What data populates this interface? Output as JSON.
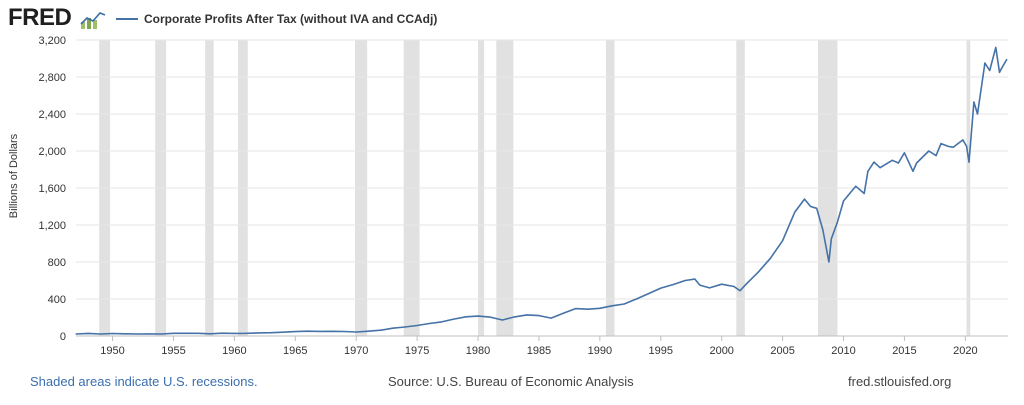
{
  "header": {
    "logo": "FRED",
    "logo_icon": "fred-graph-icon",
    "legend_label": "Corporate Profits After Tax (without IVA and CCAdj)",
    "series_color": "#4572a7"
  },
  "footer": {
    "recession_note": "Shaded areas indicate U.S. recessions.",
    "source": "Source: U.S. Bureau of Economic Analysis",
    "site": "fred.stlouisfed.org"
  },
  "chart_data": {
    "type": "line",
    "title": "",
    "xlabel": "",
    "ylabel": "Billions of Dollars",
    "xlim": [
      1947,
      2023.5
    ],
    "ylim": [
      0,
      3200
    ],
    "x_ticks": [
      1950,
      1955,
      1960,
      1965,
      1970,
      1975,
      1980,
      1985,
      1990,
      1995,
      2000,
      2005,
      2010,
      2015,
      2020
    ],
    "y_ticks": [
      0,
      400,
      800,
      1200,
      1600,
      2000,
      2400,
      2800,
      3200
    ],
    "y_tick_labels": [
      "0",
      "400",
      "800",
      "1,200",
      "1,600",
      "2,000",
      "2,400",
      "2,800",
      "3,200"
    ],
    "grid": true,
    "recession_color": "#e1e1e1",
    "recessions": [
      [
        1948.9,
        1949.8
      ],
      [
        1953.5,
        1954.4
      ],
      [
        1957.6,
        1958.3
      ],
      [
        1960.3,
        1961.1
      ],
      [
        1969.9,
        1970.9
      ],
      [
        1973.9,
        1975.2
      ],
      [
        1980.0,
        1980.5
      ],
      [
        1981.5,
        1982.9
      ],
      [
        1990.5,
        1991.2
      ],
      [
        2001.2,
        2001.9
      ],
      [
        2007.9,
        2009.5
      ],
      [
        2020.1,
        2020.4
      ]
    ],
    "series": [
      {
        "name": "Corporate Profits After Tax (without IVA and CCAdj)",
        "color": "#4572a7",
        "x": [
          1947,
          1948,
          1949,
          1950,
          1951,
          1952,
          1953,
          1954,
          1955,
          1956,
          1957,
          1958,
          1959,
          1960,
          1961,
          1962,
          1963,
          1964,
          1965,
          1966,
          1967,
          1968,
          1969,
          1970,
          1971,
          1972,
          1973,
          1974,
          1975,
          1976,
          1977,
          1978,
          1979,
          1980,
          1981,
          1982,
          1983,
          1984,
          1985,
          1986,
          1987,
          1988,
          1989,
          1990,
          1991,
          1992,
          1993,
          1994,
          1995,
          1996,
          1997,
          1997.8,
          1998.2,
          1999,
          2000,
          2001,
          2001.5,
          2002,
          2003,
          2004,
          2005,
          2006,
          2006.8,
          2007.3,
          2007.8,
          2008.3,
          2008.8,
          2009.0,
          2009.5,
          2010,
          2011,
          2011.7,
          2012,
          2012.5,
          2013,
          2014,
          2014.5,
          2015,
          2015.7,
          2016,
          2017,
          2017.6,
          2018,
          2018.6,
          2019,
          2019.8,
          2020.1,
          2020.3,
          2020.7,
          2021,
          2021.6,
          2022,
          2022.5,
          2022.8,
          2023,
          2023.4
        ],
        "values": [
          22,
          28,
          22,
          27,
          24,
          22,
          23,
          22,
          29,
          29,
          29,
          24,
          30,
          28,
          29,
          33,
          36,
          41,
          48,
          52,
          50,
          51,
          49,
          43,
          52,
          63,
          84,
          97,
          113,
          135,
          152,
          183,
          208,
          215,
          204,
          173,
          207,
          228,
          220,
          193,
          245,
          296,
          290,
          300,
          327,
          346,
          400,
          458,
          518,
          556,
          600,
          615,
          550,
          520,
          560,
          535,
          490,
          560,
          690,
          840,
          1030,
          1340,
          1480,
          1400,
          1380,
          1150,
          800,
          1050,
          1230,
          1460,
          1620,
          1540,
          1780,
          1880,
          1820,
          1900,
          1870,
          1980,
          1780,
          1870,
          2000,
          1950,
          2080,
          2050,
          2040,
          2120,
          2050,
          1880,
          2530,
          2400,
          2950,
          2870,
          3120,
          2850,
          2900,
          2990
        ]
      }
    ]
  }
}
